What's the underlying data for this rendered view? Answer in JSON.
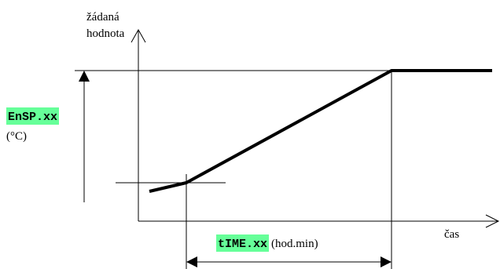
{
  "y_axis_label": {
    "line1": "žádaná",
    "line2": "hodnota"
  },
  "x_axis_label": "čas",
  "setpoint_param": {
    "code": "EnSP.xx",
    "unit": "(°C)"
  },
  "time_param": {
    "code": "tIME.xx",
    "unit": "(hod.min)"
  },
  "colors": {
    "highlight": "#66ff99",
    "line": "#000000"
  }
}
